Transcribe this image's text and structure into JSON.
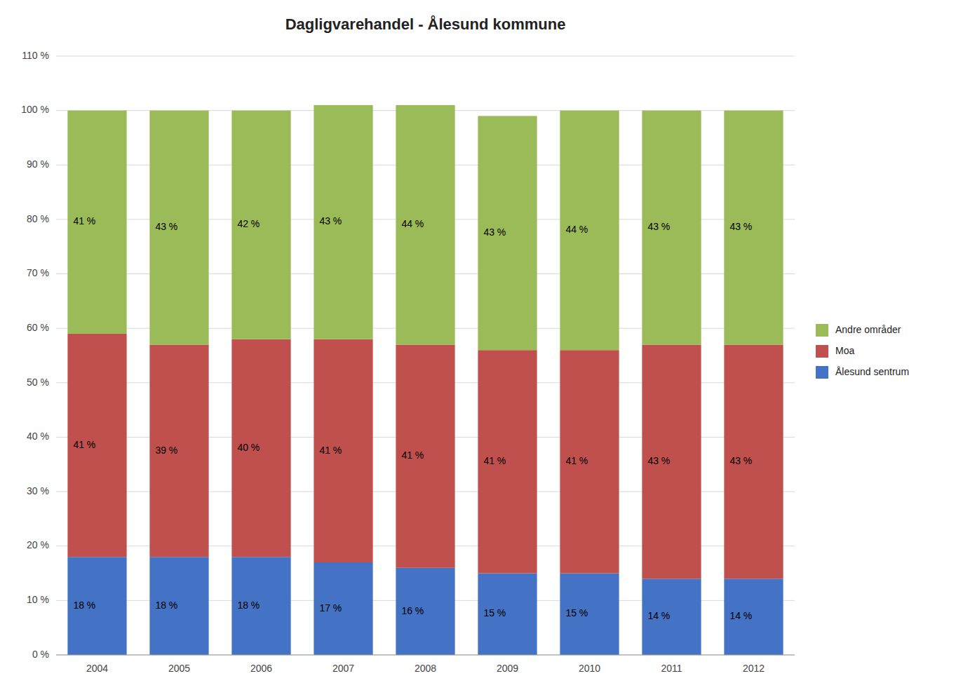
{
  "chart_data": {
    "type": "bar",
    "title": "Dagligvarehandel - Ålesund kommune",
    "categories": [
      "2004",
      "2005",
      "2006",
      "2007",
      "2008",
      "2009",
      "2010",
      "2011",
      "2012"
    ],
    "series": [
      {
        "name": "Ålesund sentrum",
        "color": "#4472C4",
        "values": [
          18,
          18,
          18,
          17,
          16,
          15,
          15,
          14,
          14
        ],
        "value_labels": [
          "18 %",
          "18 %",
          "18 %",
          "17 %",
          "16 %",
          "15 %",
          "15 %",
          "14 %",
          "14 %"
        ]
      },
      {
        "name": "Moa",
        "color": "#C0504D",
        "values": [
          41,
          39,
          40,
          41,
          41,
          41,
          41,
          43,
          43
        ],
        "value_labels": [
          "41 %",
          "39 %",
          "40 %",
          "41 %",
          "41 %",
          "41 %",
          "41 %",
          "43 %",
          "43 %"
        ]
      },
      {
        "name": "Andre områder",
        "color": "#9BBB59",
        "values": [
          41,
          43,
          42,
          43,
          44,
          43,
          44,
          43,
          43
        ],
        "value_labels": [
          "41 %",
          "43 %",
          "42 %",
          "43 %",
          "44 %",
          "43 %",
          "44 %",
          "43 %",
          "43 %"
        ]
      }
    ],
    "stacked": true,
    "data_labels": true,
    "ylim": [
      0,
      110
    ],
    "yticks": [
      {
        "value": 0,
        "label": "0 %"
      },
      {
        "value": 10,
        "label": "10 %"
      },
      {
        "value": 20,
        "label": "20 %"
      },
      {
        "value": 30,
        "label": "30 %"
      },
      {
        "value": 40,
        "label": "40 %"
      },
      {
        "value": 50,
        "label": "50 %"
      },
      {
        "value": 60,
        "label": "60 %"
      },
      {
        "value": 70,
        "label": "70 %"
      },
      {
        "value": 80,
        "label": "80 %"
      },
      {
        "value": 90,
        "label": "90 %"
      },
      {
        "value": 100,
        "label": "100 %"
      },
      {
        "value": 110,
        "label": "110 %"
      }
    ],
    "grid": true,
    "legend": "right"
  }
}
